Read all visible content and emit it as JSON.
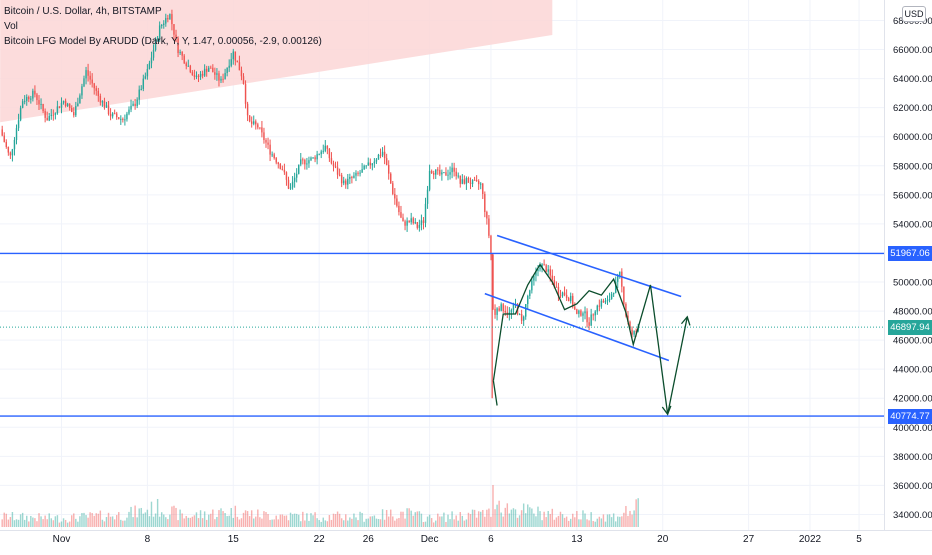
{
  "legend": {
    "symbol": "Bitcoin / U.S. Dollar, 4h, BITSTAMP",
    "volume": "Vol",
    "indicator": "Bitcoin LFG Model By ARUDD (Dark, Y, Y, 1.47, 0.00056, -2.9, 0.00126)"
  },
  "currency_label": "USD",
  "colors": {
    "up": "#26a69a",
    "down": "#ef5350",
    "level_line": "#2962ff",
    "current_price": "#26a69a",
    "channel": "#2962ff",
    "projection": "#0b4d2c",
    "cloud": "#fcd6d6"
  },
  "chart_data": {
    "type": "candlestick",
    "title": "",
    "xlabel": "",
    "ylabel": "",
    "y_axis_ticks": [
      34000,
      36000,
      38000,
      40000,
      42000,
      44000,
      46000,
      48000,
      50000,
      52000,
      54000,
      56000,
      58000,
      60000,
      62000,
      64000,
      66000,
      68000
    ],
    "y_axis_tick_labels": [
      "34000.00",
      "36000.00",
      "38000.00",
      "40000.00",
      "42000.00",
      "44000.00",
      "46000.00",
      "48000.00",
      "50000.00",
      "52000.00",
      "54000.00",
      "56000.00",
      "58000.00",
      "60000.00",
      "62000.00",
      "64000.00",
      "66000.00",
      "68000.00"
    ],
    "x_axis_ticks": [
      {
        "day": 0,
        "label": "Nov"
      },
      {
        "day": 7,
        "label": "8"
      },
      {
        "day": 14,
        "label": "15"
      },
      {
        "day": 21,
        "label": "22"
      },
      {
        "day": 25,
        "label": "26"
      },
      {
        "day": 30,
        "label": "Dec"
      },
      {
        "day": 35,
        "label": "6"
      },
      {
        "day": 42,
        "label": "13"
      },
      {
        "day": 49,
        "label": "20"
      },
      {
        "day": 56,
        "label": "27"
      },
      {
        "day": 61,
        "label": "2022"
      },
      {
        "day": 65,
        "label": "5"
      }
    ],
    "price_path": [
      [
        -5,
        60500
      ],
      [
        -4.2,
        58500
      ],
      [
        -3.2,
        62500
      ],
      [
        -2.2,
        63000
      ],
      [
        -1.2,
        61200
      ],
      [
        0.2,
        62500
      ],
      [
        1,
        61500
      ],
      [
        2,
        64500
      ],
      [
        3,
        62800
      ],
      [
        4,
        61500
      ],
      [
        5,
        61200
      ],
      [
        6,
        62300
      ],
      [
        7,
        64500
      ],
      [
        8,
        67500
      ],
      [
        8.8,
        68500
      ],
      [
        9.5,
        66000
      ],
      [
        10,
        65300
      ],
      [
        11,
        64000
      ],
      [
        12,
        64800
      ],
      [
        13,
        63800
      ],
      [
        14,
        65800
      ],
      [
        14.8,
        64000
      ],
      [
        15.2,
        61000
      ],
      [
        16,
        60700
      ],
      [
        17,
        59000
      ],
      [
        18,
        57800
      ],
      [
        18.6,
        56300
      ],
      [
        19.5,
        58200
      ],
      [
        20.5,
        58500
      ],
      [
        21.5,
        59300
      ],
      [
        22,
        58200
      ],
      [
        23,
        56800
      ],
      [
        24,
        57300
      ],
      [
        25,
        58000
      ],
      [
        26.2,
        59000
      ],
      [
        27,
        56200
      ],
      [
        27.8,
        54000
      ],
      [
        28.5,
        54200
      ],
      [
        29,
        53800
      ],
      [
        29.5,
        54200
      ],
      [
        30,
        57800
      ],
      [
        31,
        57300
      ],
      [
        32,
        57800
      ],
      [
        32.5,
        56800
      ],
      [
        33,
        57000
      ],
      [
        33.5,
        56800
      ],
      [
        34.2,
        56700
      ],
      [
        34.5,
        55000
      ],
      [
        34.8,
        53500
      ],
      [
        35.05,
        51500
      ],
      [
        35.2,
        47200
      ],
      [
        35.5,
        48300
      ],
      [
        36,
        48200
      ],
      [
        36.5,
        47800
      ],
      [
        37,
        48400
      ],
      [
        37.5,
        47200
      ],
      [
        38,
        49000
      ],
      [
        38.5,
        50300
      ],
      [
        39,
        51200
      ],
      [
        39.5,
        50900
      ],
      [
        40,
        50100
      ],
      [
        40.5,
        49300
      ],
      [
        41,
        49200
      ],
      [
        41.5,
        48800
      ],
      [
        42,
        47700
      ],
      [
        42.5,
        48000
      ],
      [
        43,
        47200
      ],
      [
        43.5,
        48200
      ],
      [
        44,
        48600
      ],
      [
        44.5,
        48600
      ],
      [
        45,
        49500
      ],
      [
        45.5,
        50500
      ],
      [
        46,
        47800
      ],
      [
        46.5,
        46300
      ],
      [
        47,
        46800
      ]
    ],
    "volume_path": [
      [
        -5,
        0.3
      ],
      [
        0,
        0.25
      ],
      [
        5,
        0.35
      ],
      [
        8,
        0.55
      ],
      [
        10,
        0.3
      ],
      [
        14,
        0.45
      ],
      [
        16,
        0.35
      ],
      [
        20,
        0.3
      ],
      [
        25,
        0.3
      ],
      [
        28,
        0.4
      ],
      [
        30,
        0.25
      ],
      [
        35,
        0.4
      ],
      [
        35.2,
        1.0
      ],
      [
        36,
        0.55
      ],
      [
        40,
        0.35
      ],
      [
        45,
        0.3
      ],
      [
        47,
        0.55
      ]
    ],
    "horizontal_levels": [
      51967.06,
      40774.77
    ],
    "horizontal_level_labels": [
      "51967.06",
      "40774.77"
    ],
    "current_price": 46897.94,
    "current_price_label": "46897.94",
    "channel_upper": [
      [
        35.5,
        53200
      ],
      [
        50.5,
        49000
      ]
    ],
    "channel_lower": [
      [
        34.5,
        49200
      ],
      [
        49.5,
        44600
      ]
    ],
    "projection_path": [
      [
        35.2,
        43200
      ],
      [
        36,
        47800
      ],
      [
        37,
        47800
      ],
      [
        38,
        49800
      ],
      [
        39,
        51200
      ],
      [
        40,
        50000
      ],
      [
        41,
        48100
      ],
      [
        42,
        48500
      ],
      [
        43,
        49400
      ],
      [
        44,
        49100
      ],
      [
        45,
        50200
      ],
      [
        46,
        47900
      ],
      [
        46.6,
        45700
      ],
      [
        48,
        49800
      ],
      [
        49.4,
        40900
      ],
      [
        51,
        47600
      ]
    ],
    "projection_start_arrow": [
      [
        35.2,
        43200
      ],
      [
        35.5,
        41500
      ]
    ],
    "overlay_cloud": [
      [
        -5,
        61000
      ],
      [
        40,
        67000
      ],
      [
        40,
        71000
      ],
      [
        -5,
        71000
      ]
    ]
  }
}
